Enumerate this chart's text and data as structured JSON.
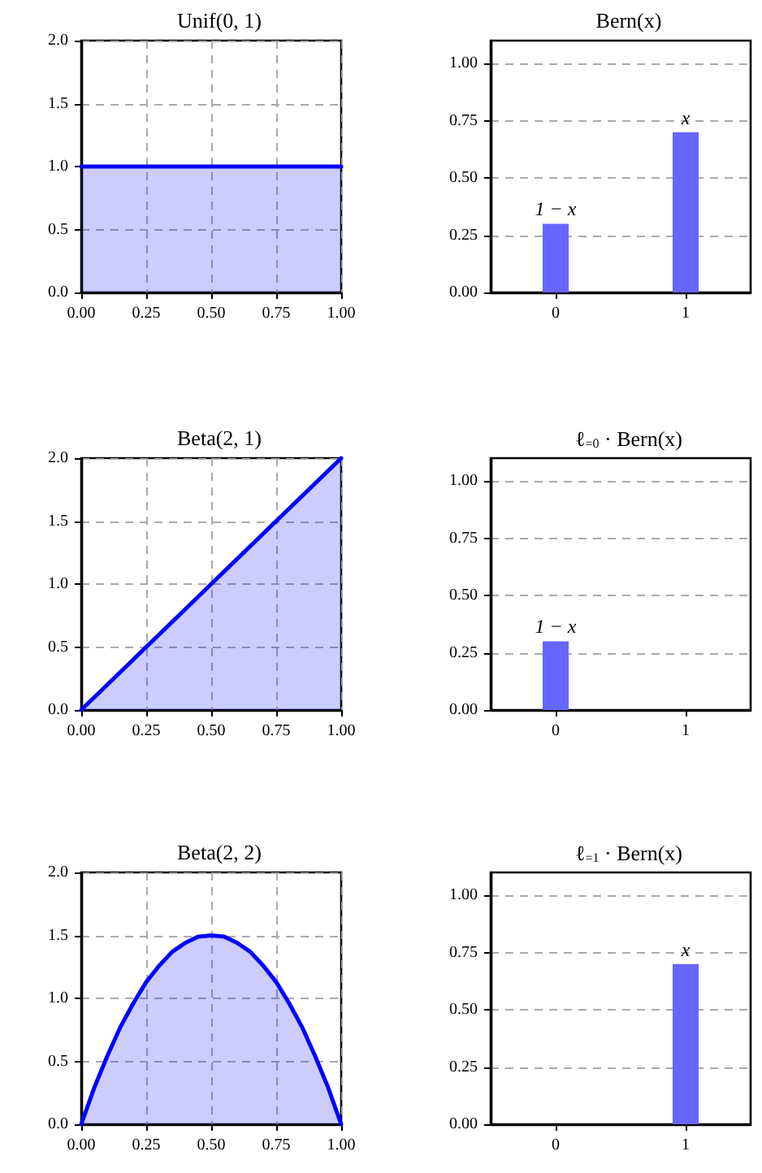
{
  "chart_data": [
    {
      "type": "area",
      "title": "Unif(0, 1)",
      "x": [
        0,
        1
      ],
      "values": [
        1,
        1
      ],
      "color": "#0000ff",
      "xlim": [
        0,
        1
      ],
      "ylim": [
        0,
        2
      ],
      "xticks": [
        {
          "value": 0,
          "label": "0.00"
        },
        {
          "value": 0.25,
          "label": "0.25"
        },
        {
          "value": 0.5,
          "label": "0.50"
        },
        {
          "value": 0.75,
          "label": "0.75"
        },
        {
          "value": 1,
          "label": "1.00"
        }
      ],
      "yticks": [
        {
          "value": 0,
          "label": "0.0"
        },
        {
          "value": 0.5,
          "label": "0.5"
        },
        {
          "value": 1,
          "label": "1.0"
        },
        {
          "value": 1.5,
          "label": "1.5"
        },
        {
          "value": 2,
          "label": "2.0"
        }
      ],
      "grid": true
    },
    {
      "type": "bar",
      "title": "Bern(x)",
      "categories": [
        "0",
        "1"
      ],
      "values": [
        0.3,
        0.7
      ],
      "color": "#6666ff",
      "ylim": [
        0,
        1.1
      ],
      "yticks": [
        {
          "value": 0,
          "label": "0.00"
        },
        {
          "value": 0.25,
          "label": "0.25"
        },
        {
          "value": 0.5,
          "label": "0.50"
        },
        {
          "value": 0.75,
          "label": "0.75"
        },
        {
          "value": 1,
          "label": "1.00"
        }
      ],
      "grid": "y",
      "annotations": [
        {
          "text": "1 − x",
          "x": "0",
          "y": 0.3
        },
        {
          "text": "x",
          "x": "1",
          "y": 0.7
        }
      ]
    },
    {
      "type": "area",
      "title": "Beta(2, 1)",
      "x": [
        0,
        1
      ],
      "values": [
        0,
        2
      ],
      "color": "#0000ff",
      "xlim": [
        0,
        1
      ],
      "ylim": [
        0,
        2
      ],
      "xticks": [
        {
          "value": 0,
          "label": "0.00"
        },
        {
          "value": 0.25,
          "label": "0.25"
        },
        {
          "value": 0.5,
          "label": "0.50"
        },
        {
          "value": 0.75,
          "label": "0.75"
        },
        {
          "value": 1,
          "label": "1.00"
        }
      ],
      "yticks": [
        {
          "value": 0,
          "label": "0.0"
        },
        {
          "value": 0.5,
          "label": "0.5"
        },
        {
          "value": 1,
          "label": "1.0"
        },
        {
          "value": 1.5,
          "label": "1.5"
        },
        {
          "value": 2,
          "label": "2.0"
        }
      ],
      "grid": true
    },
    {
      "type": "bar",
      "title": "ℓ$_{=0}$ · Bern(x)",
      "categories": [
        "0",
        "1"
      ],
      "values": [
        0.3,
        null
      ],
      "color": "#6666ff",
      "ylim": [
        0,
        1.1
      ],
      "yticks": [
        {
          "value": 0,
          "label": "0.00"
        },
        {
          "value": 0.25,
          "label": "0.25"
        },
        {
          "value": 0.5,
          "label": "0.50"
        },
        {
          "value": 0.75,
          "label": "0.75"
        },
        {
          "value": 1,
          "label": "1.00"
        }
      ],
      "grid": "y",
      "annotations": [
        {
          "text": "1 − x",
          "x": "0",
          "y": 0.3
        }
      ]
    },
    {
      "type": "area",
      "title": "Beta(2, 2)",
      "x": [
        0,
        0.05,
        0.1,
        0.15,
        0.2,
        0.25,
        0.3,
        0.35,
        0.4,
        0.45,
        0.5,
        0.55,
        0.6,
        0.65,
        0.7,
        0.75,
        0.8,
        0.85,
        0.9,
        0.95,
        1
      ],
      "values": [
        0,
        0.29,
        0.54,
        0.77,
        0.96,
        1.13,
        1.26,
        1.37,
        1.44,
        1.49,
        1.5,
        1.49,
        1.44,
        1.37,
        1.26,
        1.13,
        0.96,
        0.77,
        0.54,
        0.29,
        0
      ],
      "color": "#0000ff",
      "xlim": [
        0,
        1
      ],
      "ylim": [
        0,
        2
      ],
      "xticks": [
        {
          "value": 0,
          "label": "0.00"
        },
        {
          "value": 0.25,
          "label": "0.25"
        },
        {
          "value": 0.5,
          "label": "0.50"
        },
        {
          "value": 0.75,
          "label": "0.75"
        },
        {
          "value": 1,
          "label": "1.00"
        }
      ],
      "yticks": [
        {
          "value": 0,
          "label": "0.0"
        },
        {
          "value": 0.5,
          "label": "0.5"
        },
        {
          "value": 1,
          "label": "1.0"
        },
        {
          "value": 1.5,
          "label": "1.5"
        },
        {
          "value": 2,
          "label": "2.0"
        }
      ],
      "grid": true
    },
    {
      "type": "bar",
      "title": "ℓ$_{=1}$ · Bern(x)",
      "categories": [
        "0",
        "1"
      ],
      "values": [
        null,
        0.7
      ],
      "color": "#6666ff",
      "ylim": [
        0,
        1.1
      ],
      "yticks": [
        {
          "value": 0,
          "label": "0.00"
        },
        {
          "value": 0.25,
          "label": "0.25"
        },
        {
          "value": 0.5,
          "label": "0.50"
        },
        {
          "value": 0.75,
          "label": "0.75"
        },
        {
          "value": 1,
          "label": "1.00"
        }
      ],
      "grid": "y",
      "annotations": [
        {
          "text": "x",
          "x": "1",
          "y": 0.7
        }
      ]
    }
  ]
}
